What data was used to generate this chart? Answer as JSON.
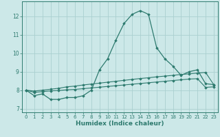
{
  "xlabel": "Humidex (Indice chaleur)",
  "x": [
    0,
    1,
    2,
    3,
    4,
    5,
    6,
    7,
    8,
    9,
    10,
    11,
    12,
    13,
    14,
    15,
    16,
    17,
    18,
    19,
    20,
    21,
    22,
    23
  ],
  "line1": [
    8.0,
    7.7,
    7.8,
    7.5,
    7.5,
    7.6,
    7.6,
    7.7,
    8.0,
    9.1,
    9.7,
    10.7,
    11.6,
    12.1,
    12.3,
    12.1,
    10.3,
    9.7,
    9.3,
    8.8,
    9.0,
    9.1,
    8.35,
    8.3
  ],
  "line2": [
    8.0,
    7.95,
    8.0,
    8.05,
    8.1,
    8.18,
    8.22,
    8.28,
    8.33,
    8.38,
    8.43,
    8.48,
    8.53,
    8.58,
    8.63,
    8.67,
    8.72,
    8.76,
    8.8,
    8.85,
    8.88,
    8.92,
    8.96,
    8.3
  ],
  "line3": [
    8.0,
    7.88,
    7.92,
    7.96,
    7.98,
    8.02,
    8.04,
    8.08,
    8.12,
    8.16,
    8.2,
    8.24,
    8.28,
    8.32,
    8.36,
    8.4,
    8.44,
    8.48,
    8.52,
    8.56,
    8.6,
    8.62,
    8.15,
    8.18
  ],
  "line_color": "#2d7a6e",
  "bg_color": "#cce8e8",
  "grid_color": "#aacfcf",
  "ylim": [
    6.8,
    12.8
  ],
  "xlim": [
    -0.5,
    23.5
  ],
  "yticks": [
    7,
    8,
    9,
    10,
    11,
    12
  ],
  "xticks": [
    0,
    1,
    2,
    3,
    4,
    5,
    6,
    7,
    8,
    9,
    10,
    11,
    12,
    13,
    14,
    15,
    16,
    17,
    18,
    19,
    20,
    21,
    22,
    23
  ]
}
